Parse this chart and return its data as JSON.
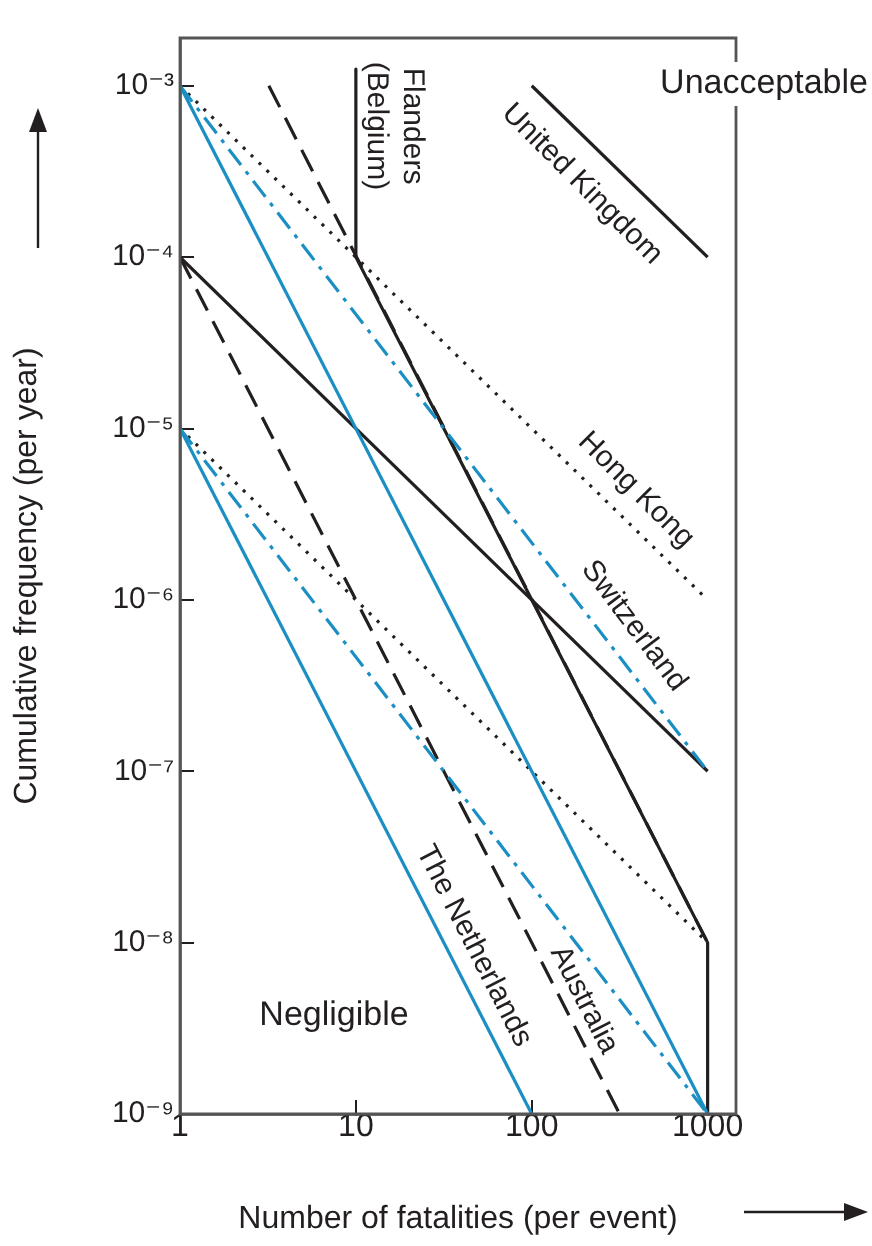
{
  "chart_data": {
    "type": "line",
    "xlabel": "Number of fatalities (per event)",
    "ylabel": "Cumulative frequency (per year)",
    "log": "xy",
    "grid": false,
    "legend": false,
    "marker": "none",
    "xlim": [
      1,
      1450
    ],
    "xticks": [
      1,
      10,
      100,
      1000
    ],
    "ylim": [
      1e-09,
      0.0019
    ],
    "yticks": [
      {
        "value": 1e-09,
        "label": "10⁻⁹"
      },
      {
        "value": 1e-08,
        "label": "10⁻⁸"
      },
      {
        "value": 1e-07,
        "label": "10⁻⁷"
      },
      {
        "value": 1e-06,
        "label": "10⁻⁶"
      },
      {
        "value": 1e-05,
        "label": "10⁻⁵"
      },
      {
        "value": 0.0001,
        "label": "10⁻⁴"
      },
      {
        "value": 0.001,
        "label": "10⁻³"
      }
    ],
    "series": [
      {
        "color": "#1b8fc4",
        "line_style": "solid",
        "x": [
          1,
          1000
        ],
        "values": [
          0.001,
          1e-09
        ]
      },
      {
        "color": "#1b8fc4",
        "line_style": "solid",
        "x": [
          1,
          100
        ],
        "values": [
          1e-05,
          1e-09
        ]
      },
      {
        "color": "#1b8fc4",
        "line_style": "dashdot",
        "x": [
          1,
          1000
        ],
        "values": [
          0.001,
          1e-07
        ]
      },
      {
        "color": "#1b8fc4",
        "line_style": "dashdot",
        "x": [
          1,
          1000
        ],
        "values": [
          1e-05,
          1e-09
        ]
      },
      {
        "color": "#231f20",
        "line_style": "dotted",
        "x": [
          1,
          1000
        ],
        "values": [
          0.001,
          1e-06
        ]
      },
      {
        "color": "#231f20",
        "line_style": "dotted",
        "x": [
          1,
          1000
        ],
        "values": [
          1e-05,
          1e-08
        ]
      },
      {
        "color": "#231f20",
        "line_style": "solid",
        "x": [
          100,
          1000
        ],
        "values": [
          0.001,
          0.0001
        ]
      },
      {
        "color": "#231f20",
        "line_style": "solid",
        "x": [
          1,
          1000
        ],
        "values": [
          0.0001,
          1e-07
        ]
      },
      {
        "color": "#231f20",
        "line_style": "solid",
        "x": [
          10,
          10,
          1000,
          1000
        ],
        "values": [
          0.00125,
          0.0001,
          1e-08,
          1e-09
        ]
      },
      {
        "color": "#231f20",
        "line_style": "dashed",
        "x": [
          1,
          316
        ],
        "values": [
          0.0001,
          1e-09
        ]
      },
      {
        "color": "#231f20",
        "line_style": "dashed",
        "x": [
          3.2,
          1000
        ],
        "values": [
          0.001,
          1e-08
        ]
      }
    ],
    "annotations": [
      "Flanders\n(Belgium)",
      "United Kingdom",
      "Hong Kong",
      "Switzerland",
      "The Netherlands",
      "Australia",
      "Unacceptable",
      "Negligible"
    ]
  }
}
